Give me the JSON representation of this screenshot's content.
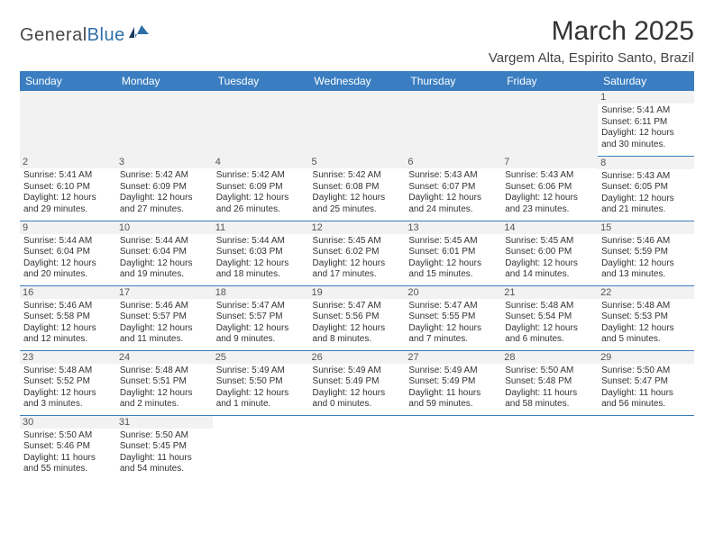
{
  "logo": {
    "text1": "General",
    "text2": "Blue"
  },
  "title": "March 2025",
  "location": "Vargem Alta, Espirito Santo, Brazil",
  "colors": {
    "header_bg": "#3a7ec1",
    "header_text": "#ffffff",
    "row_border": "#3a7ec1",
    "blank_bg": "#f2f2f2",
    "logo_gray": "#4a4a4a",
    "logo_blue": "#2f6fa8"
  },
  "weekdays": [
    "Sunday",
    "Monday",
    "Tuesday",
    "Wednesday",
    "Thursday",
    "Friday",
    "Saturday"
  ],
  "weeks": [
    [
      null,
      null,
      null,
      null,
      null,
      null,
      {
        "n": "1",
        "sr": "5:41 AM",
        "ss": "6:11 PM",
        "dl": "12 hours and 30 minutes."
      }
    ],
    [
      {
        "n": "2",
        "sr": "5:41 AM",
        "ss": "6:10 PM",
        "dl": "12 hours and 29 minutes."
      },
      {
        "n": "3",
        "sr": "5:42 AM",
        "ss": "6:09 PM",
        "dl": "12 hours and 27 minutes."
      },
      {
        "n": "4",
        "sr": "5:42 AM",
        "ss": "6:09 PM",
        "dl": "12 hours and 26 minutes."
      },
      {
        "n": "5",
        "sr": "5:42 AM",
        "ss": "6:08 PM",
        "dl": "12 hours and 25 minutes."
      },
      {
        "n": "6",
        "sr": "5:43 AM",
        "ss": "6:07 PM",
        "dl": "12 hours and 24 minutes."
      },
      {
        "n": "7",
        "sr": "5:43 AM",
        "ss": "6:06 PM",
        "dl": "12 hours and 23 minutes."
      },
      {
        "n": "8",
        "sr": "5:43 AM",
        "ss": "6:05 PM",
        "dl": "12 hours and 21 minutes."
      }
    ],
    [
      {
        "n": "9",
        "sr": "5:44 AM",
        "ss": "6:04 PM",
        "dl": "12 hours and 20 minutes."
      },
      {
        "n": "10",
        "sr": "5:44 AM",
        "ss": "6:04 PM",
        "dl": "12 hours and 19 minutes."
      },
      {
        "n": "11",
        "sr": "5:44 AM",
        "ss": "6:03 PM",
        "dl": "12 hours and 18 minutes."
      },
      {
        "n": "12",
        "sr": "5:45 AM",
        "ss": "6:02 PM",
        "dl": "12 hours and 17 minutes."
      },
      {
        "n": "13",
        "sr": "5:45 AM",
        "ss": "6:01 PM",
        "dl": "12 hours and 15 minutes."
      },
      {
        "n": "14",
        "sr": "5:45 AM",
        "ss": "6:00 PM",
        "dl": "12 hours and 14 minutes."
      },
      {
        "n": "15",
        "sr": "5:46 AM",
        "ss": "5:59 PM",
        "dl": "12 hours and 13 minutes."
      }
    ],
    [
      {
        "n": "16",
        "sr": "5:46 AM",
        "ss": "5:58 PM",
        "dl": "12 hours and 12 minutes."
      },
      {
        "n": "17",
        "sr": "5:46 AM",
        "ss": "5:57 PM",
        "dl": "12 hours and 11 minutes."
      },
      {
        "n": "18",
        "sr": "5:47 AM",
        "ss": "5:57 PM",
        "dl": "12 hours and 9 minutes."
      },
      {
        "n": "19",
        "sr": "5:47 AM",
        "ss": "5:56 PM",
        "dl": "12 hours and 8 minutes."
      },
      {
        "n": "20",
        "sr": "5:47 AM",
        "ss": "5:55 PM",
        "dl": "12 hours and 7 minutes."
      },
      {
        "n": "21",
        "sr": "5:48 AM",
        "ss": "5:54 PM",
        "dl": "12 hours and 6 minutes."
      },
      {
        "n": "22",
        "sr": "5:48 AM",
        "ss": "5:53 PM",
        "dl": "12 hours and 5 minutes."
      }
    ],
    [
      {
        "n": "23",
        "sr": "5:48 AM",
        "ss": "5:52 PM",
        "dl": "12 hours and 3 minutes."
      },
      {
        "n": "24",
        "sr": "5:48 AM",
        "ss": "5:51 PM",
        "dl": "12 hours and 2 minutes."
      },
      {
        "n": "25",
        "sr": "5:49 AM",
        "ss": "5:50 PM",
        "dl": "12 hours and 1 minute."
      },
      {
        "n": "26",
        "sr": "5:49 AM",
        "ss": "5:49 PM",
        "dl": "12 hours and 0 minutes."
      },
      {
        "n": "27",
        "sr": "5:49 AM",
        "ss": "5:49 PM",
        "dl": "11 hours and 59 minutes."
      },
      {
        "n": "28",
        "sr": "5:50 AM",
        "ss": "5:48 PM",
        "dl": "11 hours and 58 minutes."
      },
      {
        "n": "29",
        "sr": "5:50 AM",
        "ss": "5:47 PM",
        "dl": "11 hours and 56 minutes."
      }
    ],
    [
      {
        "n": "30",
        "sr": "5:50 AM",
        "ss": "5:46 PM",
        "dl": "11 hours and 55 minutes."
      },
      {
        "n": "31",
        "sr": "5:50 AM",
        "ss": "5:45 PM",
        "dl": "11 hours and 54 minutes."
      },
      null,
      null,
      null,
      null,
      null
    ]
  ],
  "labels": {
    "sunrise": "Sunrise: ",
    "sunset": "Sunset: ",
    "daylight": "Daylight: "
  }
}
